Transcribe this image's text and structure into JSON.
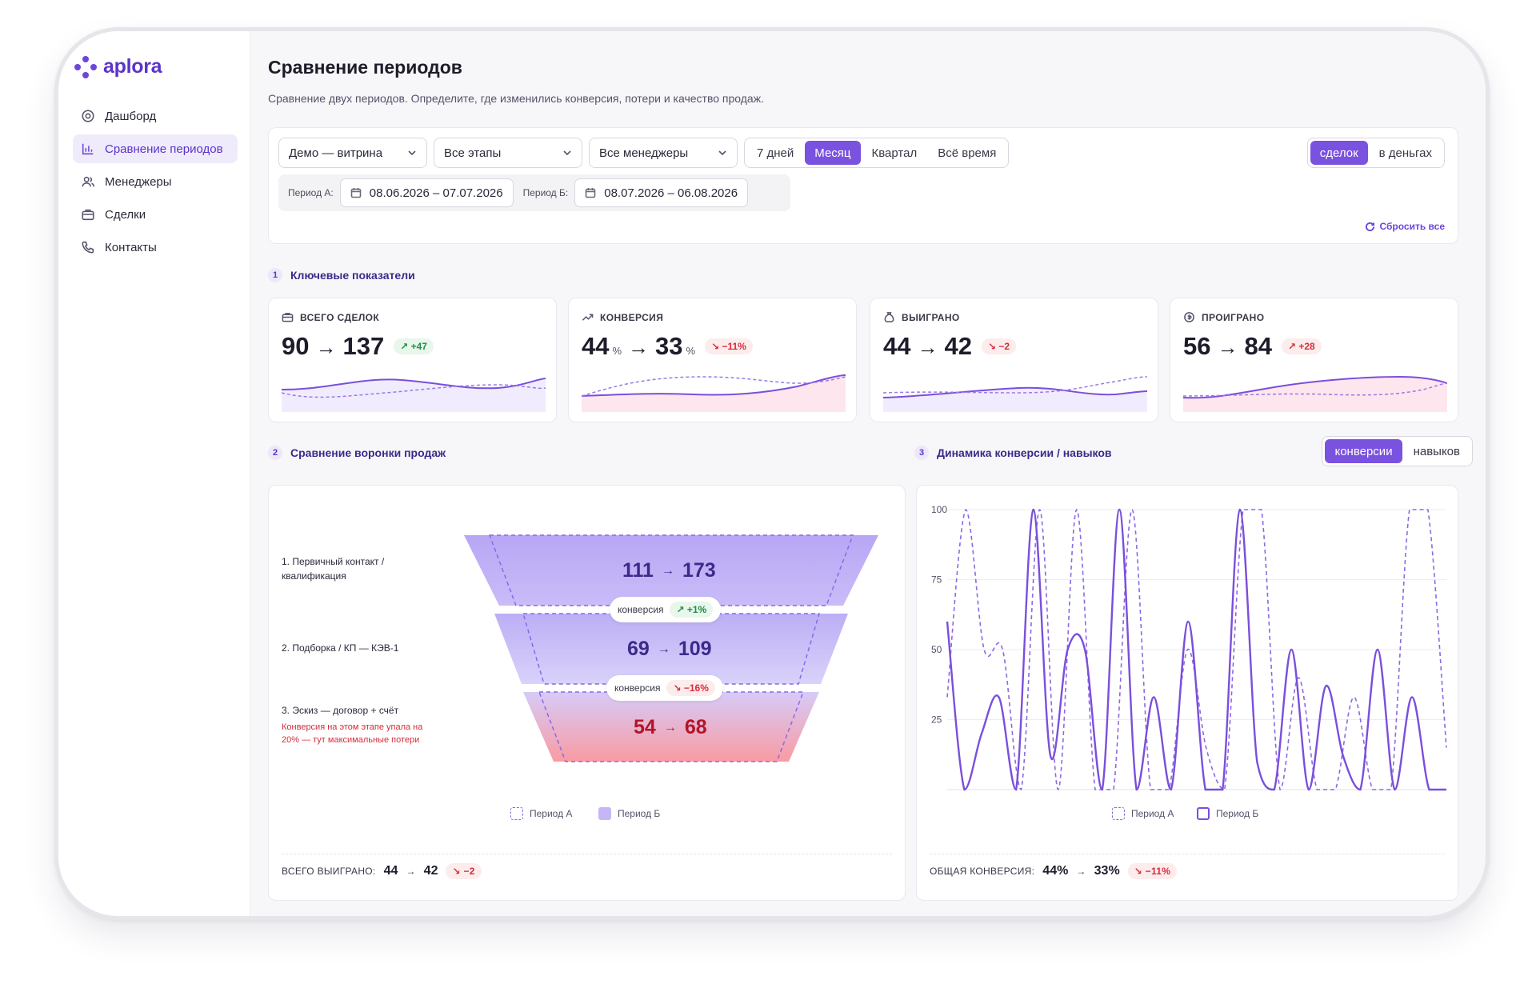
{
  "brand": {
    "name": "aplora",
    "accent": "#7a52e0"
  },
  "sidebar": {
    "items": [
      {
        "label": "Дашборд",
        "icon": "dashboard-icon"
      },
      {
        "label": "Сравнение периодов",
        "icon": "bar-chart-icon",
        "active": true
      },
      {
        "label": "Менеджеры",
        "icon": "users-icon"
      },
      {
        "label": "Сделки",
        "icon": "briefcase-icon"
      },
      {
        "label": "Контакты",
        "icon": "phone-icon"
      }
    ]
  },
  "header": {
    "title": "Сравнение периодов",
    "subtitle": "Сравнение двух периодов. Определите, где изменились конверсия, потери и качество продаж."
  },
  "filters": {
    "demo": "Демо — витрина",
    "stages": "Все этапы",
    "managers": "Все менеджеры",
    "ranges": [
      "7 дней",
      "Месяц",
      "Квартал",
      "Всё время"
    ],
    "range_selected": "Месяц",
    "units": [
      "сделок",
      "в деньгах"
    ],
    "unit_selected": "сделок",
    "period_a_label": "Период А:",
    "period_a": "08.06.2026 – 07.07.2026",
    "period_b_label": "Период Б:",
    "period_b": "08.07.2026 – 06.08.2026",
    "reset": "Сбросить все"
  },
  "sections": {
    "kpi": {
      "num": "1",
      "title": "Ключевые показатели"
    },
    "funnel": {
      "num": "2",
      "title": "Сравнение воронки продаж"
    },
    "dynamics": {
      "num": "3",
      "title": "Динамика конверсии / навыков"
    }
  },
  "kpis": [
    {
      "title": "ВСЕГО СДЕЛОК",
      "icon": "briefcase-icon",
      "a": "90",
      "b": "137",
      "unit": "",
      "delta": "+47",
      "trend": "pos"
    },
    {
      "title": "КОНВЕРСИЯ",
      "icon": "trend-up-icon",
      "a": "44",
      "b": "33",
      "unit": "%",
      "delta": "−11%",
      "trend": "neg"
    },
    {
      "title": "ВЫИГРАНО",
      "icon": "money-bag-icon",
      "a": "44",
      "b": "42",
      "unit": "",
      "delta": "−2",
      "trend": "neg"
    },
    {
      "title": "ПРОИГРАНО",
      "icon": "coin-icon",
      "a": "56",
      "b": "84",
      "unit": "",
      "delta": "+28",
      "trend": "neg-up"
    }
  ],
  "funnel": {
    "stages": [
      {
        "label": "1. Первичный контакт / квалификация",
        "a": "111",
        "b": "173"
      },
      {
        "label": "2. Подборка / КП — КЭВ-1",
        "a": "69",
        "b": "109"
      },
      {
        "label": "3. Эскиз — договор + счёт",
        "a": "54",
        "b": "68",
        "warning": "Конверсия на этом этапе упала на 20% — тут максимальные потери"
      }
    ],
    "conversions": [
      {
        "label": "конверсия",
        "delta": "+1%",
        "trend": "pos"
      },
      {
        "label": "конверсия",
        "delta": "−16%",
        "trend": "neg"
      }
    ],
    "legend_a": "Период А",
    "legend_b": "Период Б",
    "footer_label": "ВСЕГО ВЫИГРАНО:",
    "footer_a": "44",
    "footer_b": "42",
    "footer_delta": "−2"
  },
  "dynamics": {
    "toggle": [
      "конверсии",
      "навыков"
    ],
    "toggle_selected": "конверсии",
    "legend_a": "Период А",
    "legend_b": "Период Б",
    "footer_label": "ОБЩАЯ КОНВЕРСИЯ:",
    "footer_a": "44%",
    "footer_b": "33%",
    "footer_delta": "−11%"
  },
  "chart_data": {
    "type": "line",
    "title": "",
    "xlabel": "",
    "ylabel": "",
    "ylim": [
      0,
      100
    ],
    "yticks": [
      25,
      50,
      75,
      100
    ],
    "grid": true,
    "legend": "bottom",
    "series": [
      {
        "name": "Период А",
        "style": "dashed",
        "color": "#8b68e6",
        "values": [
          33,
          100,
          50,
          50,
          0,
          100,
          0,
          100,
          0,
          0,
          100,
          0,
          0,
          50,
          15,
          0,
          100,
          100,
          0,
          40,
          0,
          0,
          33,
          0,
          0,
          100,
          100,
          15
        ]
      },
      {
        "name": "Период Б",
        "style": "solid",
        "color": "#7a4fdc",
        "values": [
          60,
          0,
          20,
          33,
          0,
          100,
          12,
          50,
          50,
          0,
          100,
          0,
          33,
          0,
          60,
          0,
          0,
          100,
          10,
          0,
          50,
          0,
          37,
          12,
          0,
          50,
          0,
          33,
          0,
          0
        ]
      }
    ]
  }
}
